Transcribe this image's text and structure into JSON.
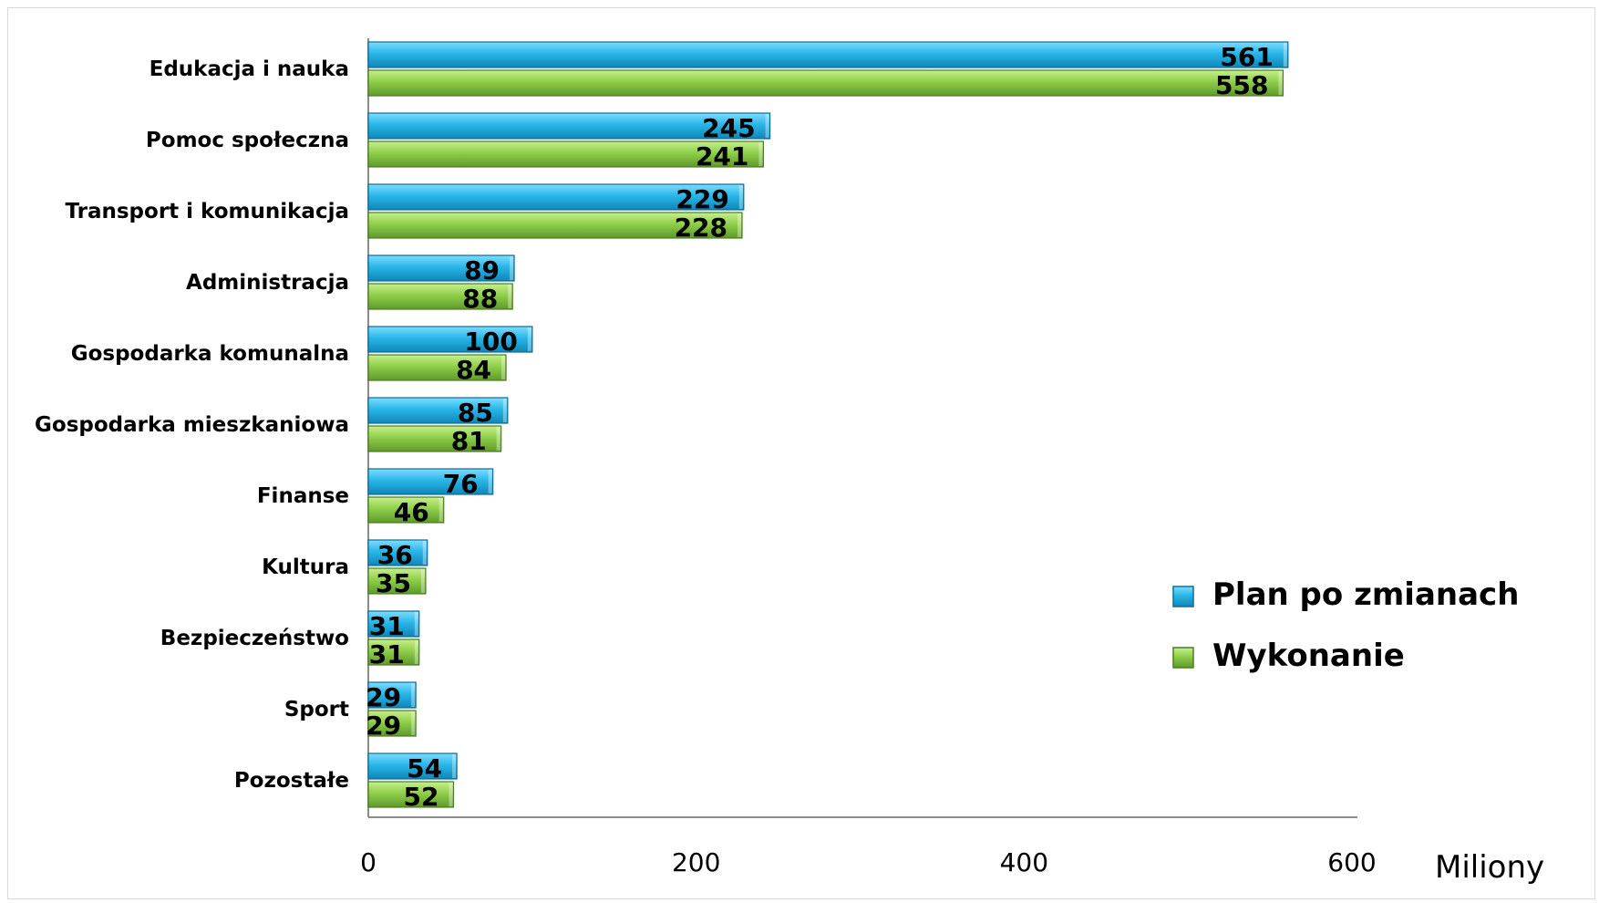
{
  "chart_data": {
    "type": "bar",
    "orientation": "horizontal",
    "categories": [
      "Edukacja i nauka",
      "Pomoc społeczna",
      "Transport i komunikacja",
      "Administracja",
      "Gospodarka komunalna",
      "Gospodarka mieszkaniowa",
      "Finanse",
      "Kultura",
      "Bezpieczeństwo",
      "Sport",
      "Pozostałe"
    ],
    "series": [
      {
        "name": "Plan po zmianach",
        "color": "#29b6e8",
        "values": [
          561,
          245,
          229,
          89,
          100,
          85,
          76,
          36,
          31,
          29,
          54
        ]
      },
      {
        "name": "Wykonanie",
        "color": "#8fcf4a",
        "values": [
          558,
          241,
          228,
          88,
          84,
          81,
          46,
          35,
          31,
          29,
          52
        ]
      }
    ],
    "xlim": [
      0,
      600
    ],
    "xticks": [
      "0",
      "200",
      "400",
      "600"
    ],
    "xunit": "Miliony",
    "grid": false,
    "legend_position": "right"
  }
}
